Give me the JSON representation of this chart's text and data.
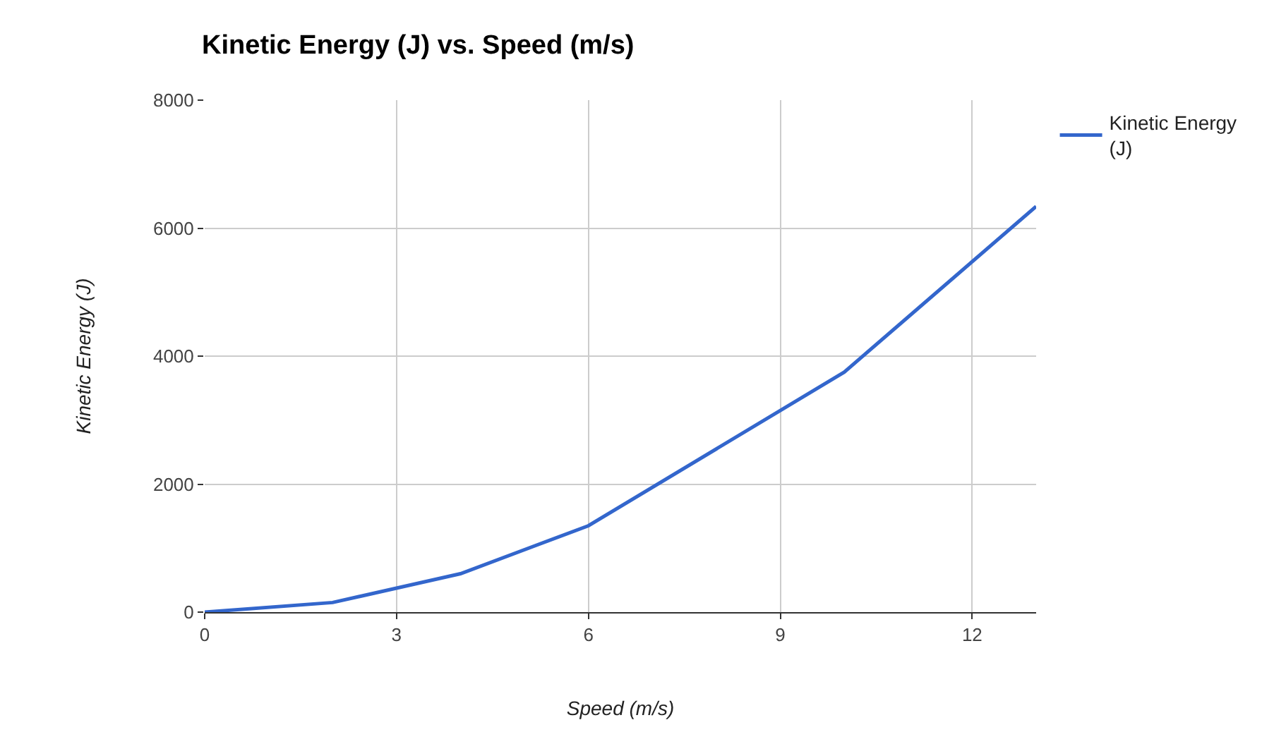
{
  "chart_data": {
    "type": "line",
    "title": "Kinetic Energy (J) vs. Speed (m/s)",
    "xlabel": "Speed (m/s)",
    "ylabel": "Kinetic Energy (J)",
    "x": [
      0,
      2,
      4,
      6,
      10,
      13
    ],
    "series": [
      {
        "name": "Kinetic Energy (J)",
        "color": "#3366cc",
        "values": [
          0,
          150,
          600,
          1350,
          3750,
          6340
        ]
      }
    ],
    "xlim": [
      0,
      13
    ],
    "xticks": [
      0,
      3,
      6,
      9,
      12
    ],
    "ylim": [
      0,
      8000
    ],
    "yticks": [
      0,
      2000,
      4000,
      6000,
      8000
    ],
    "grid": true,
    "legend": "top right",
    "marker": "none",
    "line_style": "solid"
  }
}
